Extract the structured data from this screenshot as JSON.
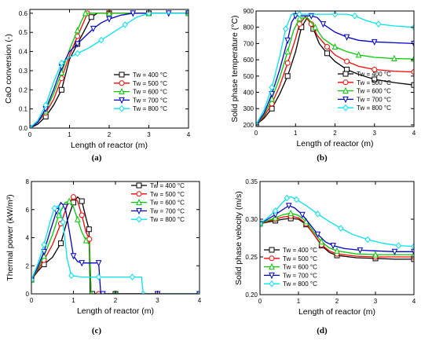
{
  "series_colors": [
    "#000000",
    "#ff0000",
    "#00cc00",
    "#0000cc",
    "#00e5ee"
  ],
  "series_markers": [
    "square",
    "circle",
    "triangle-up",
    "triangle-down",
    "diamond"
  ],
  "chart_data": [
    {
      "type": "line",
      "caption": "(a)",
      "xlabel": "Length of reactor (m)",
      "ylabel": "CaO conversion (-)",
      "xlim": [
        0,
        4
      ],
      "ylim": [
        0,
        0.62
      ],
      "xticks": [
        "0",
        "1",
        "2",
        "3",
        "4"
      ],
      "yticks": [
        "0.0",
        "0.1",
        "0.2",
        "0.3",
        "0.4",
        "0.5",
        "0.6"
      ],
      "ytick_values": [
        0,
        0.1,
        0.2,
        0.3,
        0.4,
        0.5,
        0.6
      ],
      "legend_position": "bottom-right",
      "series": [
        {
          "name": "Tw = 400 °C",
          "x": [
            0,
            0.2,
            0.4,
            0.6,
            0.8,
            1.0,
            1.2,
            1.4,
            1.55,
            1.7,
            2.0,
            2.5,
            3.0,
            3.5,
            4.0
          ],
          "y": [
            0,
            0.02,
            0.06,
            0.12,
            0.2,
            0.36,
            0.44,
            0.52,
            0.58,
            0.6,
            0.6,
            0.6,
            0.6,
            0.6,
            0.6
          ]
        },
        {
          "name": "Tw = 500 °C",
          "x": [
            0,
            0.2,
            0.4,
            0.6,
            0.8,
            1.0,
            1.2,
            1.35,
            1.45,
            1.6,
            2.0,
            2.5,
            3.0,
            3.5,
            4.0
          ],
          "y": [
            0,
            0.03,
            0.08,
            0.15,
            0.26,
            0.38,
            0.48,
            0.55,
            0.6,
            0.6,
            0.6,
            0.6,
            0.6,
            0.6,
            0.6
          ]
        },
        {
          "name": "Tw = 600 °C",
          "x": [
            0,
            0.2,
            0.4,
            0.6,
            0.8,
            1.0,
            1.2,
            1.3,
            1.4,
            1.6,
            2.0,
            2.5,
            3.0,
            3.5,
            4.0
          ],
          "y": [
            0,
            0.03,
            0.09,
            0.18,
            0.29,
            0.41,
            0.51,
            0.56,
            0.6,
            0.6,
            0.6,
            0.6,
            0.6,
            0.6,
            0.6
          ]
        },
        {
          "name": "Tw = 700 °C",
          "x": [
            0,
            0.2,
            0.4,
            0.6,
            0.8,
            1.0,
            1.2,
            1.4,
            1.6,
            1.8,
            2.0,
            2.3,
            2.6,
            3.0,
            3.5,
            4.0
          ],
          "y": [
            0,
            0.03,
            0.1,
            0.2,
            0.32,
            0.4,
            0.44,
            0.48,
            0.52,
            0.55,
            0.57,
            0.59,
            0.6,
            0.6,
            0.6,
            0.6
          ]
        },
        {
          "name": "Tw = 800 °C",
          "x": [
            0,
            0.2,
            0.4,
            0.6,
            0.8,
            1.0,
            1.2,
            1.5,
            1.8,
            2.1,
            2.4,
            2.7,
            3.0,
            3.5,
            4.0
          ],
          "y": [
            0,
            0.04,
            0.12,
            0.24,
            0.34,
            0.37,
            0.39,
            0.42,
            0.46,
            0.5,
            0.54,
            0.58,
            0.6,
            0.6,
            0.6
          ]
        }
      ]
    },
    {
      "type": "line",
      "caption": "(b)",
      "xlabel": "Length of reactor (m)",
      "ylabel": "Solid phase temperature (°C)",
      "xlim": [
        0,
        4
      ],
      "ylim": [
        190,
        900
      ],
      "xticks": [
        "0",
        "1",
        "2",
        "3",
        "4"
      ],
      "yticks": [
        "200",
        "300",
        "400",
        "500",
        "600",
        "700",
        "800",
        "900"
      ],
      "ytick_values": [
        200,
        300,
        400,
        500,
        600,
        700,
        800,
        900
      ],
      "legend_position": "bottom-right",
      "series": [
        {
          "name": "Tw = 400 °C",
          "x": [
            0,
            0.2,
            0.4,
            0.6,
            0.8,
            1.0,
            1.15,
            1.3,
            1.45,
            1.6,
            1.8,
            2.0,
            2.3,
            2.6,
            3.0,
            3.5,
            4.0
          ],
          "y": [
            200,
            240,
            300,
            390,
            500,
            650,
            800,
            860,
            790,
            700,
            640,
            590,
            540,
            510,
            480,
            460,
            445
          ]
        },
        {
          "name": "Tw = 500 °C",
          "x": [
            0,
            0.2,
            0.4,
            0.6,
            0.8,
            1.0,
            1.1,
            1.25,
            1.4,
            1.55,
            1.8,
            2.0,
            2.3,
            2.6,
            3.0,
            3.5,
            4.0
          ],
          "y": [
            200,
            250,
            330,
            440,
            580,
            730,
            820,
            865,
            820,
            750,
            680,
            630,
            590,
            560,
            540,
            530,
            525
          ]
        },
        {
          "name": "Tw = 600 °C",
          "x": [
            0,
            0.2,
            0.4,
            0.6,
            0.8,
            0.95,
            1.1,
            1.3,
            1.5,
            1.7,
            2.0,
            2.3,
            2.6,
            3.0,
            3.5,
            4.0
          ],
          "y": [
            200,
            260,
            360,
            490,
            650,
            780,
            855,
            860,
            800,
            730,
            680,
            650,
            630,
            615,
            608,
            605
          ]
        },
        {
          "name": "Tw = 700 °C",
          "x": [
            0,
            0.2,
            0.4,
            0.6,
            0.8,
            0.9,
            1.0,
            1.2,
            1.4,
            1.55,
            1.7,
            2.0,
            2.3,
            2.6,
            3.0,
            3.5,
            4.0
          ],
          "y": [
            200,
            270,
            390,
            540,
            720,
            830,
            870,
            870,
            870,
            860,
            820,
            770,
            740,
            720,
            710,
            705,
            700
          ]
        },
        {
          "name": "Tw = 800 °C",
          "x": [
            0,
            0.2,
            0.4,
            0.6,
            0.75,
            0.9,
            1.1,
            1.5,
            2.0,
            2.3,
            2.5,
            2.8,
            3.1,
            3.5,
            4.0
          ],
          "y": [
            200,
            290,
            430,
            620,
            790,
            880,
            880,
            880,
            880,
            880,
            870,
            840,
            820,
            808,
            800
          ]
        }
      ]
    },
    {
      "type": "line",
      "caption": "(c)",
      "xlabel": "Length of reactor (m)",
      "ylabel": "Thermal power (kW/m³)",
      "xlim": [
        0,
        4
      ],
      "ylim": [
        0,
        8
      ],
      "xticks": [
        "0",
        "1",
        "2",
        "3",
        "4"
      ],
      "yticks": [
        "0",
        "2",
        "4",
        "6",
        "8"
      ],
      "ytick_values": [
        0,
        2,
        4,
        6,
        8
      ],
      "legend_position": "top-right",
      "series": [
        {
          "name": "Tw = 400 °C",
          "x": [
            0,
            0.15,
            0.3,
            0.5,
            0.7,
            0.85,
            1.0,
            1.1,
            1.2,
            1.3,
            1.37,
            1.4,
            1.45,
            1.6,
            2.0,
            3.0,
            4.0
          ],
          "y": [
            1.0,
            1.6,
            2.1,
            2.6,
            3.6,
            5.2,
            6.5,
            6.9,
            6.6,
            5.4,
            4.6,
            0,
            0,
            0,
            0,
            0,
            0
          ]
        },
        {
          "name": "Tw = 500 °C",
          "x": [
            0,
            0.15,
            0.3,
            0.5,
            0.7,
            0.85,
            1.0,
            1.1,
            1.2,
            1.3,
            1.38,
            1.42,
            1.6,
            2.0,
            3.0,
            4.0
          ],
          "y": [
            1.0,
            1.7,
            2.4,
            3.5,
            5.0,
            6.3,
            6.9,
            6.6,
            5.6,
            4.4,
            3.9,
            0,
            0,
            0,
            0,
            0
          ]
        },
        {
          "name": "Tw = 600 °C",
          "x": [
            0,
            0.15,
            0.3,
            0.5,
            0.65,
            0.8,
            0.9,
            1.0,
            1.1,
            1.2,
            1.3,
            1.38,
            1.42,
            1.6,
            2.0,
            3.0,
            4.0
          ],
          "y": [
            1.0,
            1.8,
            2.7,
            4.2,
            5.6,
            6.5,
            6.6,
            6.2,
            5.3,
            4.4,
            3.8,
            3.5,
            0,
            0,
            0,
            0,
            0
          ]
        },
        {
          "name": "Tw = 700 °C",
          "x": [
            0,
            0.15,
            0.3,
            0.45,
            0.6,
            0.7,
            0.8,
            0.9,
            1.0,
            1.1,
            1.2,
            1.4,
            1.6,
            1.65,
            1.7,
            2.0,
            3.0,
            4.0
          ],
          "y": [
            1.0,
            1.9,
            3.0,
            4.5,
            5.9,
            6.5,
            6.2,
            4.5,
            2.7,
            2.3,
            2.2,
            2.2,
            2.2,
            0,
            0,
            0,
            0,
            0
          ]
        },
        {
          "name": "Tw = 800 °C",
          "x": [
            0,
            0.15,
            0.3,
            0.45,
            0.55,
            0.65,
            0.75,
            0.85,
            0.95,
            1.2,
            1.6,
            2.0,
            2.4,
            2.62,
            2.66,
            3.0,
            4.0
          ],
          "y": [
            1.0,
            2.1,
            3.5,
            5.2,
            6.1,
            6.3,
            5.1,
            2.5,
            1.3,
            1.2,
            1.2,
            1.2,
            1.2,
            1.2,
            0,
            0,
            0
          ]
        }
      ]
    },
    {
      "type": "line",
      "caption": "(d)",
      "xlabel": "Length of reactor (m)",
      "ylabel": "Solid phase velocity (m/s)",
      "xlim": [
        0,
        4
      ],
      "ylim": [
        0.2,
        0.35
      ],
      "xticks": [
        "0",
        "1",
        "2",
        "3",
        "4"
      ],
      "yticks": [
        "0.20",
        "0.25",
        "0.30",
        "0.35"
      ],
      "ytick_values": [
        0.2,
        0.25,
        0.3,
        0.35
      ],
      "legend_position": "bottom-left",
      "series": [
        {
          "name": "Tw = 400 °C",
          "x": [
            0,
            0.2,
            0.4,
            0.6,
            0.8,
            1.0,
            1.2,
            1.4,
            1.6,
            1.8,
            2.0,
            2.5,
            3.0,
            3.5,
            4.0
          ],
          "y": [
            0.294,
            0.296,
            0.298,
            0.3,
            0.301,
            0.3,
            0.293,
            0.28,
            0.265,
            0.256,
            0.252,
            0.249,
            0.248,
            0.247,
            0.247
          ]
        },
        {
          "name": "Tw = 500 °C",
          "x": [
            0,
            0.2,
            0.4,
            0.6,
            0.8,
            1.0,
            1.2,
            1.4,
            1.6,
            1.8,
            2.0,
            2.5,
            3.0,
            3.5,
            4.0
          ],
          "y": [
            0.294,
            0.297,
            0.3,
            0.303,
            0.304,
            0.302,
            0.294,
            0.28,
            0.266,
            0.258,
            0.254,
            0.251,
            0.25,
            0.25,
            0.25
          ]
        },
        {
          "name": "Tw = 600 °C",
          "x": [
            0,
            0.2,
            0.4,
            0.6,
            0.8,
            1.0,
            1.2,
            1.4,
            1.6,
            1.8,
            2.0,
            2.5,
            3.0,
            3.5,
            4.0
          ],
          "y": [
            0.294,
            0.298,
            0.302,
            0.306,
            0.308,
            0.305,
            0.297,
            0.283,
            0.27,
            0.262,
            0.258,
            0.254,
            0.253,
            0.253,
            0.253
          ]
        },
        {
          "name": "Tw = 700 °C",
          "x": [
            0,
            0.2,
            0.4,
            0.6,
            0.75,
            0.9,
            1.1,
            1.3,
            1.5,
            1.7,
            1.9,
            2.2,
            2.6,
            3.0,
            3.5,
            4.0
          ],
          "y": [
            0.294,
            0.3,
            0.306,
            0.313,
            0.318,
            0.315,
            0.306,
            0.293,
            0.28,
            0.27,
            0.265,
            0.261,
            0.259,
            0.258,
            0.257,
            0.257
          ]
        },
        {
          "name": "Tw = 800 °C",
          "x": [
            0,
            0.2,
            0.4,
            0.55,
            0.7,
            0.8,
            0.95,
            1.2,
            1.5,
            1.8,
            2.1,
            2.4,
            2.8,
            3.2,
            3.6,
            4.0
          ],
          "y": [
            0.294,
            0.302,
            0.311,
            0.32,
            0.328,
            0.33,
            0.326,
            0.318,
            0.307,
            0.297,
            0.288,
            0.28,
            0.273,
            0.268,
            0.265,
            0.264
          ]
        }
      ]
    }
  ]
}
